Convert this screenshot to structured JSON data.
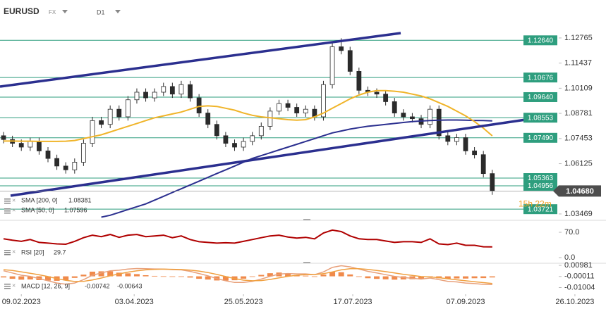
{
  "header": {
    "symbol": "EURUSD",
    "market": "FX",
    "timeframe": "D1"
  },
  "chart_data": [
    {
      "type": "candlestick",
      "xlim": [
        -0.4,
        67.8
      ],
      "xticks": [
        {
          "value": 2,
          "label": "09.02.2023"
        },
        {
          "value": 14.7,
          "label": "03.04.2023"
        },
        {
          "value": 27,
          "label": "25.05.2023"
        },
        {
          "value": 39.3,
          "label": "17.07.2023"
        },
        {
          "value": 52,
          "label": "07.09.2023"
        },
        {
          "value": 64.3,
          "label": "26.10.2023"
        }
      ],
      "ylim": [
        1.0317,
        1.1477
      ],
      "yticks": [
        1.12765,
        1.11437,
        1.10109,
        1.08781,
        1.07453,
        1.06125,
        1.03469
      ],
      "up_color": "#ffffff",
      "down_color": "#2b2b2b",
      "open": [
        1.076,
        1.074,
        1.072,
        1.07,
        1.073,
        1.068,
        1.064,
        1.06,
        1.058,
        1.062,
        1.072,
        1.084,
        1.082,
        1.09,
        1.086,
        1.095,
        1.099,
        1.096,
        1.099,
        1.102,
        1.098,
        1.103,
        1.096,
        1.088,
        1.082,
        1.076,
        1.072,
        1.07,
        1.073,
        1.076,
        1.081,
        1.089,
        1.093,
        1.091,
        1.088,
        1.09,
        1.086,
        1.103,
        1.123,
        1.121,
        1.11,
        1.1,
        1.099,
        1.098,
        1.094,
        1.088,
        1.086,
        1.085,
        1.082,
        1.09,
        1.076,
        1.073,
        1.075,
        1.068,
        1.066,
        1.056
      ],
      "high": [
        1.078,
        1.076,
        1.074,
        1.075,
        1.075,
        1.07,
        1.066,
        1.062,
        1.064,
        1.074,
        1.086,
        1.086,
        1.092,
        1.092,
        1.097,
        1.101,
        1.101,
        1.101,
        1.104,
        1.104,
        1.105,
        1.105,
        1.098,
        1.09,
        1.084,
        1.078,
        1.074,
        1.075,
        1.078,
        1.083,
        1.091,
        1.095,
        1.095,
        1.093,
        1.092,
        1.092,
        1.105,
        1.125,
        1.1275,
        1.123,
        1.112,
        1.102,
        1.101,
        1.1,
        1.096,
        1.09,
        1.088,
        1.087,
        1.092,
        1.092,
        1.078,
        1.077,
        1.077,
        1.07,
        1.068,
        1.058
      ],
      "low": [
        1.072,
        1.07,
        1.068,
        1.068,
        1.066,
        1.062,
        1.058,
        1.056,
        1.056,
        1.06,
        1.07,
        1.08,
        1.08,
        1.084,
        1.084,
        1.093,
        1.094,
        1.094,
        1.097,
        1.096,
        1.096,
        1.094,
        1.086,
        1.08,
        1.074,
        1.07,
        1.068,
        1.068,
        1.071,
        1.074,
        1.079,
        1.087,
        1.089,
        1.086,
        1.086,
        1.084,
        1.084,
        1.101,
        1.119,
        1.108,
        1.098,
        1.097,
        1.096,
        1.092,
        1.086,
        1.084,
        1.083,
        1.08,
        1.08,
        1.074,
        1.071,
        1.071,
        1.066,
        1.064,
        1.054,
        1.0448
      ],
      "close": [
        1.074,
        1.072,
        1.07,
        1.073,
        1.068,
        1.064,
        1.06,
        1.058,
        1.062,
        1.072,
        1.084,
        1.082,
        1.09,
        1.086,
        1.095,
        1.099,
        1.096,
        1.099,
        1.102,
        1.098,
        1.103,
        1.096,
        1.088,
        1.082,
        1.076,
        1.072,
        1.07,
        1.073,
        1.076,
        1.081,
        1.089,
        1.093,
        1.091,
        1.088,
        1.09,
        1.086,
        1.103,
        1.123,
        1.121,
        1.11,
        1.1,
        1.099,
        1.098,
        1.094,
        1.088,
        1.086,
        1.085,
        1.082,
        1.09,
        1.076,
        1.073,
        1.075,
        1.068,
        1.066,
        1.056,
        1.0468
      ],
      "series": [
        {
          "name": "SMA [200, 0]",
          "color": "#2b2f8f",
          "values": [
            null,
            null,
            null,
            null,
            null,
            null,
            null,
            null,
            null,
            null,
            null,
            1.033,
            1.034,
            1.0355,
            1.037,
            1.0385,
            1.04,
            1.042,
            1.044,
            1.046,
            1.048,
            1.05,
            1.052,
            1.054,
            1.056,
            1.058,
            1.06,
            1.062,
            1.064,
            1.0655,
            1.067,
            1.0685,
            1.07,
            1.0715,
            1.073,
            1.0745,
            1.076,
            1.0775,
            1.0785,
            1.0795,
            1.0803,
            1.081,
            1.0815,
            1.082,
            1.0825,
            1.083,
            1.0835,
            1.0838,
            1.084,
            1.0842,
            1.0843,
            1.0843,
            1.0842,
            1.0841,
            1.084,
            1.08381
          ]
        },
        {
          "name": "SMA [50, 0]",
          "color": "#f0b429",
          "values": [
            1.0732,
            1.0732,
            1.0731,
            1.0731,
            1.073,
            1.073,
            1.073,
            1.0731,
            1.0735,
            1.0745,
            1.0755,
            1.0765,
            1.078,
            1.0795,
            1.081,
            1.0825,
            1.084,
            1.0855,
            1.0865,
            1.0875,
            1.0885,
            1.09,
            1.0915,
            1.0918,
            1.0915,
            1.0905,
            1.0895,
            1.088,
            1.0868,
            1.086,
            1.0855,
            1.085,
            1.0845,
            1.0842,
            1.0845,
            1.086,
            1.088,
            1.0905,
            1.093,
            1.0955,
            1.0975,
            1.099,
            1.0998,
            1.0998,
            1.0995,
            1.099,
            1.098,
            1.097,
            1.0955,
            1.0935,
            1.0915,
            1.089,
            1.0865,
            1.0835,
            1.08,
            1.07596
          ]
        }
      ],
      "level_color": "#2e9e7e",
      "levels": [
        1.1264,
        1.10676,
        1.0964,
        1.08553,
        1.0749,
        1.05363,
        1.04956,
        1.03721
      ],
      "level_labels": [
        "1.12640",
        "1.10676",
        "1.09640",
        "1.08553",
        "1.07490",
        "1.05363",
        "1.04956",
        "1.03721"
      ],
      "last_price": 1.0468,
      "last_price_label": "1.04680",
      "countdown": "15h 22m"
    },
    {
      "type": "line",
      "title": "RSI [20]",
      "ylim": [
        0,
        100
      ],
      "yticks": [
        {
          "value": 70,
          "label": "70.0"
        },
        {
          "value": 0,
          "label": "0.0"
        }
      ],
      "series": [
        {
          "color": "#b00000",
          "values": [
            52,
            48,
            45,
            50,
            42,
            40,
            38,
            37,
            45,
            55,
            62,
            58,
            64,
            56,
            62,
            64,
            58,
            60,
            62,
            55,
            60,
            50,
            44,
            42,
            40,
            41,
            40,
            45,
            50,
            55,
            60,
            62,
            57,
            54,
            56,
            52,
            68,
            76,
            72,
            60,
            52,
            50,
            50,
            46,
            42,
            44,
            44,
            42,
            52,
            38,
            36,
            40,
            34,
            34,
            30,
            29.7
          ]
        }
      ]
    },
    {
      "type": "macd",
      "title": "MACD [12, 26, 9]",
      "ylim": [
        -0.0173,
        0.0111
      ],
      "yticks": [
        0.00981,
        -0.00011,
        -0.01004
      ],
      "series": [
        {
          "color": "#e8a07a",
          "values": [
            0.005,
            0.003,
            0.001,
            0.0,
            -0.002,
            -0.004,
            -0.006,
            -0.007,
            -0.006,
            -0.003,
            0.001,
            0.003,
            0.005,
            0.0055,
            0.0065,
            0.007,
            0.0068,
            0.0066,
            0.0065,
            0.006,
            0.0058,
            0.0045,
            0.0025,
            0.0005,
            -0.002,
            -0.004,
            -0.0055,
            -0.0055,
            -0.0045,
            -0.0025,
            0.0,
            0.002,
            0.0025,
            0.0022,
            0.0022,
            0.0015,
            0.004,
            0.008,
            0.0095,
            0.0085,
            0.0065,
            0.0045,
            0.003,
            0.0015,
            0.0,
            -0.001,
            -0.0018,
            -0.0025,
            -0.0015,
            -0.003,
            -0.0045,
            -0.005,
            -0.006,
            -0.0065,
            -0.0072,
            -0.00742
          ]
        },
        {
          "color": "#f0a040",
          "values": [
            0.006,
            0.0052,
            0.004,
            0.0028,
            0.0014,
            -0.0002,
            -0.002,
            -0.0036,
            -0.0046,
            -0.0045,
            -0.0032,
            -0.0015,
            0.0005,
            0.0022,
            0.0038,
            0.005,
            0.0058,
            0.0062,
            0.0064,
            0.0063,
            0.0061,
            0.0056,
            0.0047,
            0.0034,
            0.0017,
            -0.0002,
            -0.002,
            -0.0034,
            -0.004,
            -0.0038,
            -0.0028,
            -0.0014,
            0.0,
            0.001,
            0.0016,
            0.0016,
            0.0024,
            0.004,
            0.0058,
            0.0068,
            0.0068,
            0.0062,
            0.0053,
            0.0042,
            0.003,
            0.0018,
            0.0008,
            -0.0002,
            -0.0006,
            -0.0012,
            -0.0022,
            -0.0031,
            -0.004,
            -0.0048,
            -0.0056,
            -0.00643
          ]
        }
      ],
      "histogram": {
        "color": "#f08a4b",
        "values": [
          -0.001,
          -0.0022,
          -0.003,
          -0.0028,
          -0.0034,
          -0.0038,
          -0.004,
          -0.0034,
          -0.0014,
          0.0015,
          0.0042,
          0.0045,
          0.0045,
          0.0033,
          0.0027,
          0.002,
          0.001,
          0.0004,
          0.0001,
          -0.0003,
          -0.0003,
          -0.0011,
          -0.0022,
          -0.0029,
          -0.0037,
          -0.0038,
          -0.0035,
          -0.0021,
          -0.0005,
          0.0013,
          0.0028,
          0.0034,
          0.0025,
          0.0012,
          0.0006,
          -0.0001,
          0.0016,
          0.004,
          0.0037,
          0.0017,
          -0.0003,
          -0.0017,
          -0.0023,
          -0.0027,
          -0.003,
          -0.0028,
          -0.0026,
          -0.0023,
          -0.0009,
          -0.0018,
          -0.0023,
          -0.0019,
          -0.002,
          -0.0017,
          -0.0016,
          -0.00099
        ]
      }
    }
  ]
}
